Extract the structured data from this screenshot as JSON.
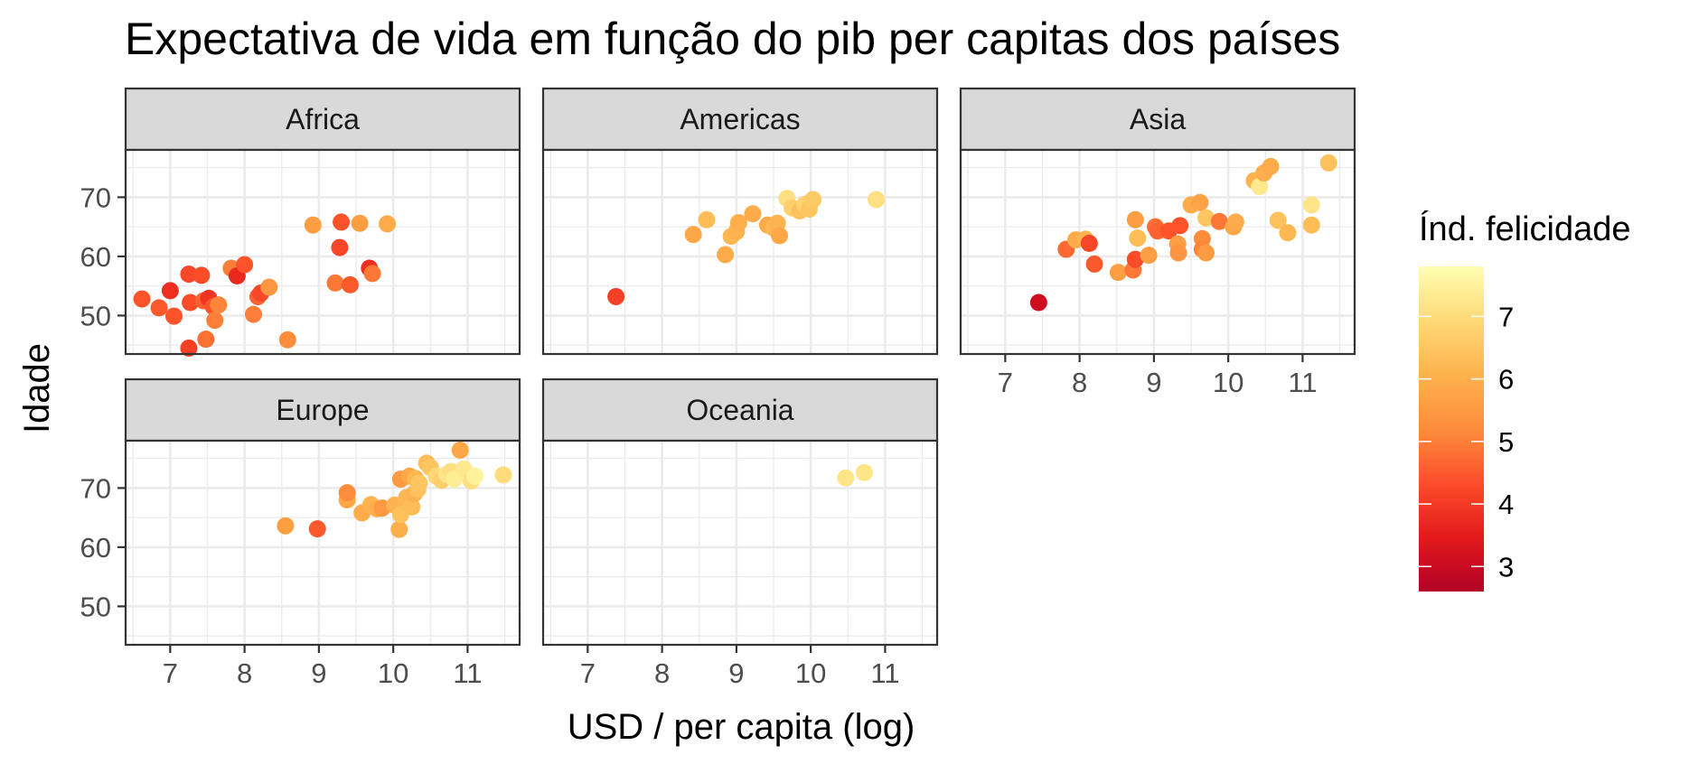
{
  "chart_data": {
    "type": "scatter",
    "title": "Expectativa de vida em função do pib per capitas dos países",
    "xlabel": "USD / per capita (log)",
    "ylabel": "Idade",
    "xlim": [
      6.4,
      11.7
    ],
    "ylim": [
      43.5,
      78
    ],
    "x_ticks": [
      7,
      8,
      9,
      10,
      11
    ],
    "y_ticks": [
      50,
      60,
      70
    ],
    "grid": true,
    "legend": {
      "title": "Índ. felicidade",
      "position": "right",
      "range": [
        2.6,
        7.8
      ],
      "ticks": [
        3,
        4,
        5,
        6,
        7
      ],
      "colors": [
        "#b10026",
        "#e31a1c",
        "#fc4e2a",
        "#fd8d3c",
        "#feb24c",
        "#fed976",
        "#ffffb2"
      ]
    },
    "facets": [
      {
        "name": "Africa",
        "points": [
          {
            "x": 6.62,
            "y": 52.8,
            "happiness": 4.4
          },
          {
            "x": 6.85,
            "y": 51.3,
            "happiness": 4.5
          },
          {
            "x": 7.0,
            "y": 54.2,
            "happiness": 3.8
          },
          {
            "x": 7.05,
            "y": 49.9,
            "happiness": 4.4
          },
          {
            "x": 7.25,
            "y": 57.0,
            "happiness": 4.2
          },
          {
            "x": 7.27,
            "y": 52.2,
            "happiness": 4.3
          },
          {
            "x": 7.25,
            "y": 44.5,
            "happiness": 4.1
          },
          {
            "x": 7.42,
            "y": 56.8,
            "happiness": 4.3
          },
          {
            "x": 7.45,
            "y": 52.5,
            "happiness": 4.6
          },
          {
            "x": 7.48,
            "y": 46.0,
            "happiness": 4.8
          },
          {
            "x": 7.52,
            "y": 52.9,
            "happiness": 3.9
          },
          {
            "x": 7.58,
            "y": 51.5,
            "happiness": 4.4
          },
          {
            "x": 7.6,
            "y": 49.2,
            "happiness": 5.0
          },
          {
            "x": 7.65,
            "y": 51.8,
            "happiness": 5.1
          },
          {
            "x": 7.82,
            "y": 58.0,
            "happiness": 5.0
          },
          {
            "x": 7.9,
            "y": 56.7,
            "happiness": 3.7
          },
          {
            "x": 8.0,
            "y": 58.6,
            "happiness": 4.4
          },
          {
            "x": 8.12,
            "y": 50.2,
            "happiness": 5.0
          },
          {
            "x": 8.18,
            "y": 53.2,
            "happiness": 4.6
          },
          {
            "x": 8.22,
            "y": 53.8,
            "happiness": 4.2
          },
          {
            "x": 8.33,
            "y": 54.8,
            "happiness": 5.4
          },
          {
            "x": 8.58,
            "y": 45.9,
            "happiness": 5.2
          },
          {
            "x": 8.92,
            "y": 65.3,
            "happiness": 5.6
          },
          {
            "x": 9.22,
            "y": 55.5,
            "happiness": 4.9
          },
          {
            "x": 9.28,
            "y": 61.5,
            "happiness": 4.2
          },
          {
            "x": 9.3,
            "y": 65.8,
            "happiness": 4.4
          },
          {
            "x": 9.42,
            "y": 55.2,
            "happiness": 4.5
          },
          {
            "x": 9.55,
            "y": 65.6,
            "happiness": 5.6
          },
          {
            "x": 9.68,
            "y": 58.0,
            "happiness": 3.8
          },
          {
            "x": 9.72,
            "y": 57.1,
            "happiness": 4.9
          },
          {
            "x": 9.92,
            "y": 65.5,
            "happiness": 5.9
          }
        ]
      },
      {
        "name": "Americas",
        "points": [
          {
            "x": 7.38,
            "y": 53.2,
            "happiness": 4.1
          },
          {
            "x": 8.42,
            "y": 63.7,
            "happiness": 5.8
          },
          {
            "x": 8.6,
            "y": 66.2,
            "happiness": 6.3
          },
          {
            "x": 8.85,
            "y": 60.3,
            "happiness": 5.9
          },
          {
            "x": 8.93,
            "y": 63.4,
            "happiness": 6.2
          },
          {
            "x": 9.0,
            "y": 64.2,
            "happiness": 6.1
          },
          {
            "x": 9.03,
            "y": 65.7,
            "happiness": 6.0
          },
          {
            "x": 9.22,
            "y": 67.2,
            "happiness": 5.9
          },
          {
            "x": 9.42,
            "y": 65.3,
            "happiness": 5.9
          },
          {
            "x": 9.5,
            "y": 64.8,
            "happiness": 6.2
          },
          {
            "x": 9.55,
            "y": 65.6,
            "happiness": 6.1
          },
          {
            "x": 9.58,
            "y": 63.5,
            "happiness": 5.8
          },
          {
            "x": 9.68,
            "y": 69.8,
            "happiness": 7.1
          },
          {
            "x": 9.75,
            "y": 68.2,
            "happiness": 6.7
          },
          {
            "x": 9.85,
            "y": 67.7,
            "happiness": 6.4
          },
          {
            "x": 9.92,
            "y": 68.8,
            "happiness": 6.8
          },
          {
            "x": 9.98,
            "y": 68.0,
            "happiness": 6.5
          },
          {
            "x": 10.03,
            "y": 69.6,
            "happiness": 6.6
          },
          {
            "x": 10.88,
            "y": 69.6,
            "happiness": 7.1
          }
        ]
      },
      {
        "name": "Asia",
        "points": [
          {
            "x": 7.45,
            "y": 52.2,
            "happiness": 3.1
          },
          {
            "x": 7.82,
            "y": 61.2,
            "happiness": 4.7
          },
          {
            "x": 7.95,
            "y": 62.8,
            "happiness": 5.9
          },
          {
            "x": 8.08,
            "y": 62.9,
            "happiness": 6.1
          },
          {
            "x": 8.13,
            "y": 62.2,
            "happiness": 4.2
          },
          {
            "x": 8.2,
            "y": 58.7,
            "happiness": 4.5
          },
          {
            "x": 8.52,
            "y": 57.3,
            "happiness": 5.6
          },
          {
            "x": 8.72,
            "y": 57.7,
            "happiness": 4.9
          },
          {
            "x": 8.75,
            "y": 59.5,
            "happiness": 4.3
          },
          {
            "x": 8.75,
            "y": 66.2,
            "happiness": 5.6
          },
          {
            "x": 8.78,
            "y": 63.1,
            "happiness": 6.3
          },
          {
            "x": 8.93,
            "y": 60.2,
            "happiness": 5.6
          },
          {
            "x": 9.02,
            "y": 65.0,
            "happiness": 4.8
          },
          {
            "x": 9.05,
            "y": 64.3,
            "happiness": 4.6
          },
          {
            "x": 9.2,
            "y": 64.3,
            "happiness": 4.4
          },
          {
            "x": 9.32,
            "y": 62.1,
            "happiness": 5.6
          },
          {
            "x": 9.33,
            "y": 60.6,
            "happiness": 5.4
          },
          {
            "x": 9.35,
            "y": 65.2,
            "happiness": 4.4
          },
          {
            "x": 9.5,
            "y": 68.7,
            "happiness": 5.9
          },
          {
            "x": 9.62,
            "y": 69.1,
            "happiness": 5.7
          },
          {
            "x": 9.65,
            "y": 63.0,
            "happiness": 5.2
          },
          {
            "x": 9.65,
            "y": 61.2,
            "happiness": 5.1
          },
          {
            "x": 9.7,
            "y": 66.5,
            "happiness": 6.5
          },
          {
            "x": 9.7,
            "y": 60.6,
            "happiness": 5.5
          },
          {
            "x": 9.88,
            "y": 65.9,
            "happiness": 4.9
          },
          {
            "x": 10.07,
            "y": 65.0,
            "happiness": 5.8
          },
          {
            "x": 10.1,
            "y": 65.8,
            "happiness": 5.9
          },
          {
            "x": 10.35,
            "y": 72.8,
            "happiness": 6.1
          },
          {
            "x": 10.42,
            "y": 71.8,
            "happiness": 7.3
          },
          {
            "x": 10.48,
            "y": 74.1,
            "happiness": 6.0
          },
          {
            "x": 10.57,
            "y": 75.2,
            "happiness": 5.9
          },
          {
            "x": 10.67,
            "y": 66.1,
            "happiness": 6.4
          },
          {
            "x": 10.8,
            "y": 64.0,
            "happiness": 6.2
          },
          {
            "x": 11.12,
            "y": 68.7,
            "happiness": 7.2
          },
          {
            "x": 11.12,
            "y": 65.3,
            "happiness": 6.3
          },
          {
            "x": 11.35,
            "y": 75.8,
            "happiness": 6.4
          }
        ]
      },
      {
        "name": "Europe",
        "points": [
          {
            "x": 8.55,
            "y": 63.6,
            "happiness": 5.6
          },
          {
            "x": 8.98,
            "y": 63.1,
            "happiness": 4.5
          },
          {
            "x": 9.38,
            "y": 68.0,
            "happiness": 5.8
          },
          {
            "x": 9.38,
            "y": 69.2,
            "happiness": 5.2
          },
          {
            "x": 9.58,
            "y": 65.8,
            "happiness": 5.9
          },
          {
            "x": 9.7,
            "y": 67.2,
            "happiness": 6.1
          },
          {
            "x": 9.78,
            "y": 66.5,
            "happiness": 6.0
          },
          {
            "x": 9.85,
            "y": 66.6,
            "happiness": 5.5
          },
          {
            "x": 10.02,
            "y": 67.1,
            "happiness": 6.1
          },
          {
            "x": 10.08,
            "y": 63.0,
            "happiness": 6.0
          },
          {
            "x": 10.1,
            "y": 71.5,
            "happiness": 5.5
          },
          {
            "x": 10.1,
            "y": 65.5,
            "happiness": 6.4
          },
          {
            "x": 10.18,
            "y": 68.4,
            "happiness": 6.2
          },
          {
            "x": 10.22,
            "y": 72.0,
            "happiness": 5.8
          },
          {
            "x": 10.25,
            "y": 66.8,
            "happiness": 6.3
          },
          {
            "x": 10.28,
            "y": 69.0,
            "happiness": 6.1
          },
          {
            "x": 10.3,
            "y": 71.6,
            "happiness": 6.2
          },
          {
            "x": 10.33,
            "y": 69.8,
            "happiness": 6.4
          },
          {
            "x": 10.35,
            "y": 70.8,
            "happiness": 6.5
          },
          {
            "x": 10.45,
            "y": 74.2,
            "happiness": 6.3
          },
          {
            "x": 10.5,
            "y": 73.5,
            "happiness": 6.5
          },
          {
            "x": 10.58,
            "y": 72.0,
            "happiness": 6.9
          },
          {
            "x": 10.65,
            "y": 71.3,
            "happiness": 6.7
          },
          {
            "x": 10.72,
            "y": 72.3,
            "happiness": 7.2
          },
          {
            "x": 10.78,
            "y": 72.8,
            "happiness": 7.1
          },
          {
            "x": 10.82,
            "y": 71.5,
            "happiness": 7.4
          },
          {
            "x": 10.9,
            "y": 76.4,
            "happiness": 5.8
          },
          {
            "x": 10.95,
            "y": 73.2,
            "happiness": 7.3
          },
          {
            "x": 11.05,
            "y": 71.2,
            "happiness": 7.1
          },
          {
            "x": 11.1,
            "y": 72.0,
            "happiness": 7.5
          },
          {
            "x": 11.48,
            "y": 72.2,
            "happiness": 7.0
          }
        ]
      },
      {
        "name": "Oceania",
        "points": [
          {
            "x": 10.47,
            "y": 71.7,
            "happiness": 7.2
          },
          {
            "x": 10.72,
            "y": 72.6,
            "happiness": 7.2
          }
        ]
      }
    ]
  }
}
